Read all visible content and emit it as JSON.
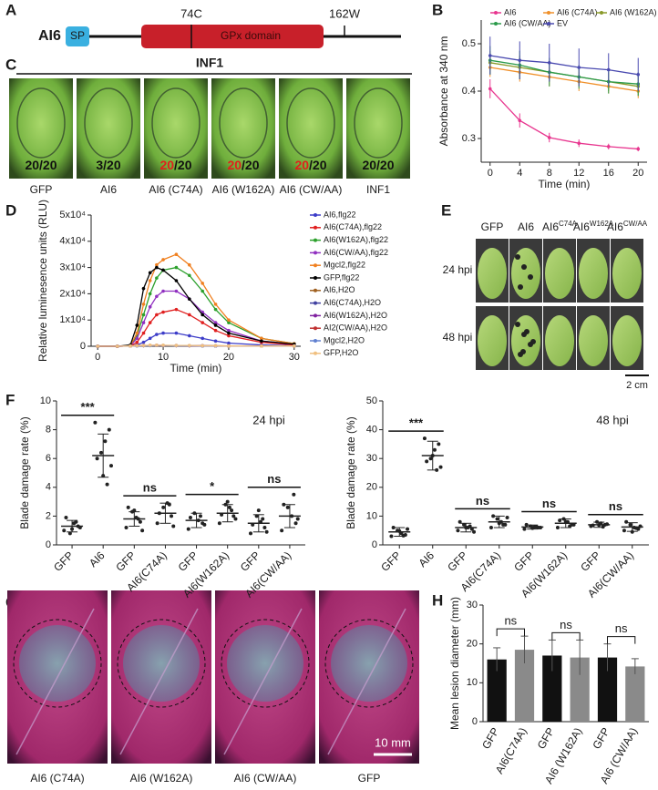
{
  "panel_labels": [
    "A",
    "B",
    "C",
    "D",
    "E",
    "F",
    "G",
    "H"
  ],
  "panel_a": {
    "protein": "AI6",
    "signal_peptide": "SP",
    "domain": "GPx domain",
    "sites": [
      "74C",
      "162W"
    ]
  },
  "panel_c": {
    "treatment": "INF1",
    "tiles": [
      {
        "score": [
          {
            "text": "20/20",
            "color": "#111111"
          }
        ],
        "caption": "GFP"
      },
      {
        "score": [
          {
            "text": "3/20",
            "color": "#111111"
          }
        ],
        "caption": "AI6"
      },
      {
        "score": [
          {
            "text": "20",
            "color": "#e0201c"
          },
          {
            "text": "/20",
            "color": "#111111"
          }
        ],
        "caption": "AI6 (C74A)"
      },
      {
        "score": [
          {
            "text": "20",
            "color": "#e0201c"
          },
          {
            "text": "/20",
            "color": "#111111"
          }
        ],
        "caption": "AI6 (W162A)"
      },
      {
        "score": [
          {
            "text": "20",
            "color": "#e0201c"
          },
          {
            "text": "/20",
            "color": "#111111"
          }
        ],
        "caption": "AI6 (CW/AA)"
      },
      {
        "score": [
          {
            "text": "20/20",
            "color": "#111111"
          }
        ],
        "caption": "INF1"
      }
    ]
  },
  "panel_e": {
    "columns": [
      {
        "base": "GFP"
      },
      {
        "base": "AI6"
      },
      {
        "base": "AI6",
        "sup": "C74A"
      },
      {
        "base": "AI6",
        "sup": "W162A"
      },
      {
        "base": "AI6",
        "sup": "CW/AA"
      }
    ],
    "rows": [
      "24 hpi",
      "48 hpi"
    ],
    "scale_bar": "2 cm"
  },
  "panel_g": {
    "captions": [
      "AI6 (C74A)",
      "AI6 (W162A)",
      "AI6 (CW/AA)",
      "GFP"
    ],
    "scale_bar": "10 mm"
  },
  "chart_data": [
    {
      "type": "line",
      "x": [
        0,
        4,
        8,
        12,
        16,
        20
      ],
      "xlim": [
        -1.2,
        21.2
      ],
      "xticks": [
        0,
        4,
        8,
        12,
        16,
        20
      ],
      "ylim": [
        0.25,
        0.55
      ],
      "yticks": [
        0.3,
        0.4,
        0.5
      ],
      "xlabel": "Time (min)",
      "ylabel": "Absorbance at 340 nm",
      "series": [
        {
          "name": "AI6",
          "color": "#e8368f",
          "values": [
            0.405,
            0.338,
            0.302,
            0.29,
            0.283,
            0.278
          ],
          "errors": [
            0.02,
            0.015,
            0.01,
            0.008,
            0.006,
            0.005
          ]
        },
        {
          "name": "AI6 (C74A)",
          "color": "#f0902a",
          "values": [
            0.45,
            0.44,
            0.43,
            0.42,
            0.41,
            0.4
          ],
          "errors": [
            0.02,
            0.02,
            0.02,
            0.02,
            0.015,
            0.015
          ]
        },
        {
          "name": "AI6 (W162A)",
          "color": "#8a9a2a",
          "values": [
            0.46,
            0.45,
            0.44,
            0.43,
            0.42,
            0.41
          ],
          "errors": [
            0.025,
            0.025,
            0.02,
            0.02,
            0.02,
            0.02
          ]
        },
        {
          "name": "AI6 (CW/AA)",
          "color": "#2a9a4a",
          "values": [
            0.465,
            0.455,
            0.44,
            0.43,
            0.42,
            0.415
          ],
          "errors": [
            0.03,
            0.03,
            0.03,
            0.025,
            0.025,
            0.025
          ]
        },
        {
          "name": "EV",
          "color": "#4a4ab0",
          "values": [
            0.475,
            0.465,
            0.46,
            0.45,
            0.445,
            0.435
          ],
          "errors": [
            0.04,
            0.04,
            0.04,
            0.04,
            0.035,
            0.035
          ]
        }
      ]
    },
    {
      "type": "line",
      "x": [
        0,
        3,
        5,
        6,
        7,
        8,
        9,
        10,
        12,
        14,
        16,
        18,
        20,
        25,
        30
      ],
      "xlim": [
        -1,
        31
      ],
      "xticks": [
        0,
        10,
        20,
        30
      ],
      "ylim": [
        0,
        50000
      ],
      "yticks": [
        0,
        {
          "value": 10000,
          "label": "1x10⁴"
        },
        {
          "value": 20000,
          "label": "2x10⁴"
        },
        {
          "value": 30000,
          "label": "3x10⁴"
        },
        {
          "value": 40000,
          "label": "4x10⁴"
        },
        {
          "value": 50000,
          "label": "5x10⁴"
        }
      ],
      "xlabel": "Time (min)",
      "ylabel": "Relative luminesence units (RLU)",
      "series": [
        {
          "name": "AI6,flg22",
          "color": "#3c3cc8",
          "values": [
            0,
            0,
            50,
            500,
            1500,
            3000,
            4500,
            5000,
            5000,
            4000,
            3000,
            2000,
            1200,
            500,
            200
          ]
        },
        {
          "name": "AI6(C74A),flg22",
          "color": "#e02020",
          "values": [
            0,
            0,
            100,
            1500,
            5000,
            9000,
            12000,
            13000,
            14000,
            12000,
            9000,
            6000,
            4000,
            1500,
            500
          ]
        },
        {
          "name": "AI6(W162A),flg22",
          "color": "#2ca02c",
          "values": [
            0,
            0,
            300,
            4000,
            12000,
            20000,
            26000,
            29000,
            30000,
            27000,
            21000,
            14000,
            9000,
            3000,
            1000
          ]
        },
        {
          "name": "AI6(CW/AA),flg22",
          "color": "#9030c0",
          "values": [
            0,
            0,
            200,
            3000,
            9000,
            15000,
            19000,
            21000,
            21000,
            18000,
            13000,
            9000,
            6000,
            2000,
            800
          ]
        },
        {
          "name": "Mgcl2,flg22",
          "color": "#f08020",
          "values": [
            0,
            0,
            300,
            5000,
            16000,
            25000,
            31000,
            33000,
            35000,
            31000,
            24000,
            16000,
            10000,
            3000,
            1000
          ]
        },
        {
          "name": "GFP,flg22",
          "color": "#000000",
          "values": [
            0,
            0,
            500,
            8000,
            22000,
            28000,
            30000,
            29000,
            25000,
            18000,
            12000,
            8000,
            5000,
            2000,
            800
          ]
        },
        {
          "name": "AI6,H2O",
          "color": "#a06020",
          "values": [
            0,
            0,
            100,
            200,
            300,
            300,
            300,
            300,
            300,
            200,
            200,
            200,
            100,
            100,
            100
          ]
        },
        {
          "name": "AI6(C74A),H2O",
          "color": "#4040a0",
          "values": [
            0,
            0,
            100,
            200,
            200,
            300,
            300,
            300,
            200,
            200,
            200,
            100,
            100,
            100,
            100
          ]
        },
        {
          "name": "AI6(W162A),H2O",
          "color": "#8020a0",
          "values": [
            0,
            0,
            100,
            200,
            300,
            300,
            400,
            300,
            300,
            200,
            200,
            100,
            100,
            100,
            100
          ]
        },
        {
          "name": "AI2(CW/AA),H2O",
          "color": "#c03030",
          "values": [
            0,
            0,
            100,
            200,
            200,
            300,
            300,
            300,
            200,
            200,
            100,
            100,
            100,
            100,
            100
          ]
        },
        {
          "name": "Mgcl2,H2O",
          "color": "#6080d0",
          "values": [
            0,
            0,
            100,
            100,
            200,
            200,
            300,
            300,
            200,
            200,
            100,
            100,
            100,
            100,
            100
          ]
        },
        {
          "name": "GFP,H2O",
          "color": "#f0c080",
          "values": [
            0,
            0,
            100,
            200,
            300,
            400,
            400,
            400,
            300,
            300,
            200,
            200,
            100,
            100,
            100
          ]
        }
      ]
    },
    {
      "type": "dotplot",
      "annotation": "24 hpi",
      "ylabel": "Blade damage rate (%)",
      "ylim": [
        0,
        10
      ],
      "yticks": [
        0,
        2,
        4,
        6,
        8,
        10
      ],
      "categories": [
        "GFP",
        "AI6",
        "GFP",
        "AI6(C74A)",
        "GFP",
        "AI6(W162A)",
        "GFP",
        "AI6(CW/AA)"
      ],
      "groups": [
        [
          1.0,
          1.3,
          1.5,
          0.8,
          1.9,
          1.2,
          1.6,
          1.1
        ],
        [
          8.5,
          8.0,
          7.2,
          6.4,
          6.0,
          5.5,
          4.2,
          4.8
        ],
        [
          1.2,
          1.6,
          1.9,
          2.3,
          2.6,
          1.0,
          1.8,
          2.4
        ],
        [
          1.5,
          2.0,
          2.9,
          2.6,
          2.2,
          1.3,
          2.8
        ],
        [
          1.1,
          1.5,
          1.7,
          2.2,
          1.9,
          1.4,
          2.0
        ],
        [
          1.5,
          2.0,
          2.6,
          2.8,
          2.1,
          1.8,
          2.4,
          3.0
        ],
        [
          0.8,
          1.2,
          1.6,
          2.0,
          1.4,
          0.9,
          1.8,
          2.4
        ],
        [
          1.0,
          1.5,
          2.0,
          2.6,
          2.8,
          1.8,
          3.5
        ]
      ],
      "means": [
        1.3,
        6.2,
        1.8,
        2.2,
        1.7,
        2.2,
        1.5,
        2.0
      ],
      "sds": [
        0.4,
        1.5,
        0.5,
        0.7,
        0.5,
        0.6,
        0.6,
        0.8
      ],
      "significance": [
        "***",
        "ns",
        "*",
        "ns"
      ]
    },
    {
      "type": "dotplot",
      "annotation": "48 hpi",
      "ylabel": "Blade damage rate (%)",
      "ylim": [
        0,
        50
      ],
      "yticks": [
        0,
        10,
        20,
        30,
        40,
        50
      ],
      "categories": [
        "GFP",
        "AI6",
        "GFP",
        "AI6(C74A)",
        "GFP",
        "AI6(W162A)",
        "GFP",
        "AI6(CW/AA)"
      ],
      "groups": [
        [
          3,
          3.5,
          4,
          5,
          6,
          5.5,
          3.2,
          4.8
        ],
        [
          37,
          35,
          33,
          30,
          29,
          27,
          26,
          31
        ],
        [
          5,
          5.5,
          6,
          7,
          8,
          4.5,
          6.5,
          6
        ],
        [
          6,
          7,
          8,
          9,
          10,
          9.5,
          7,
          7.5
        ],
        [
          5.5,
          6,
          6.2,
          6.5,
          7,
          6,
          6.3,
          5.8
        ],
        [
          6,
          7,
          8,
          9,
          8.5,
          7,
          6.5,
          8
        ],
        [
          6.5,
          7,
          7.5,
          8,
          6.8,
          7.2,
          6.3,
          6.9
        ],
        [
          5,
          5.5,
          6,
          7,
          8,
          6.5,
          5.8,
          4.5
        ]
      ],
      "means": [
        4.5,
        31,
        6,
        8,
        6.2,
        7.5,
        7,
        6.2
      ],
      "sds": [
        1.5,
        5,
        1.5,
        2,
        0.7,
        1.5,
        0.9,
        1.5
      ],
      "significance": [
        "***",
        "ns",
        "ns",
        "ns"
      ]
    },
    {
      "type": "bar",
      "ylabel": "Mean lesion diameter (mm)",
      "ylim": [
        0,
        30
      ],
      "yticks": [
        0,
        10,
        20,
        30
      ],
      "categories": [
        "GFP",
        "AI6(C74A)",
        "GFP",
        "AI6 (W162A)",
        "GFP",
        "AI6 (CW/AA)"
      ],
      "values": [
        16,
        18.5,
        17,
        16.5,
        16.5,
        14.2
      ],
      "errors": [
        3,
        3.5,
        4,
        4.5,
        3.5,
        2
      ],
      "colors": [
        "#111111",
        "#8a8a8a",
        "#111111",
        "#8a8a8a",
        "#111111",
        "#8a8a8a"
      ],
      "significance": [
        "ns",
        "ns",
        "ns"
      ]
    }
  ]
}
